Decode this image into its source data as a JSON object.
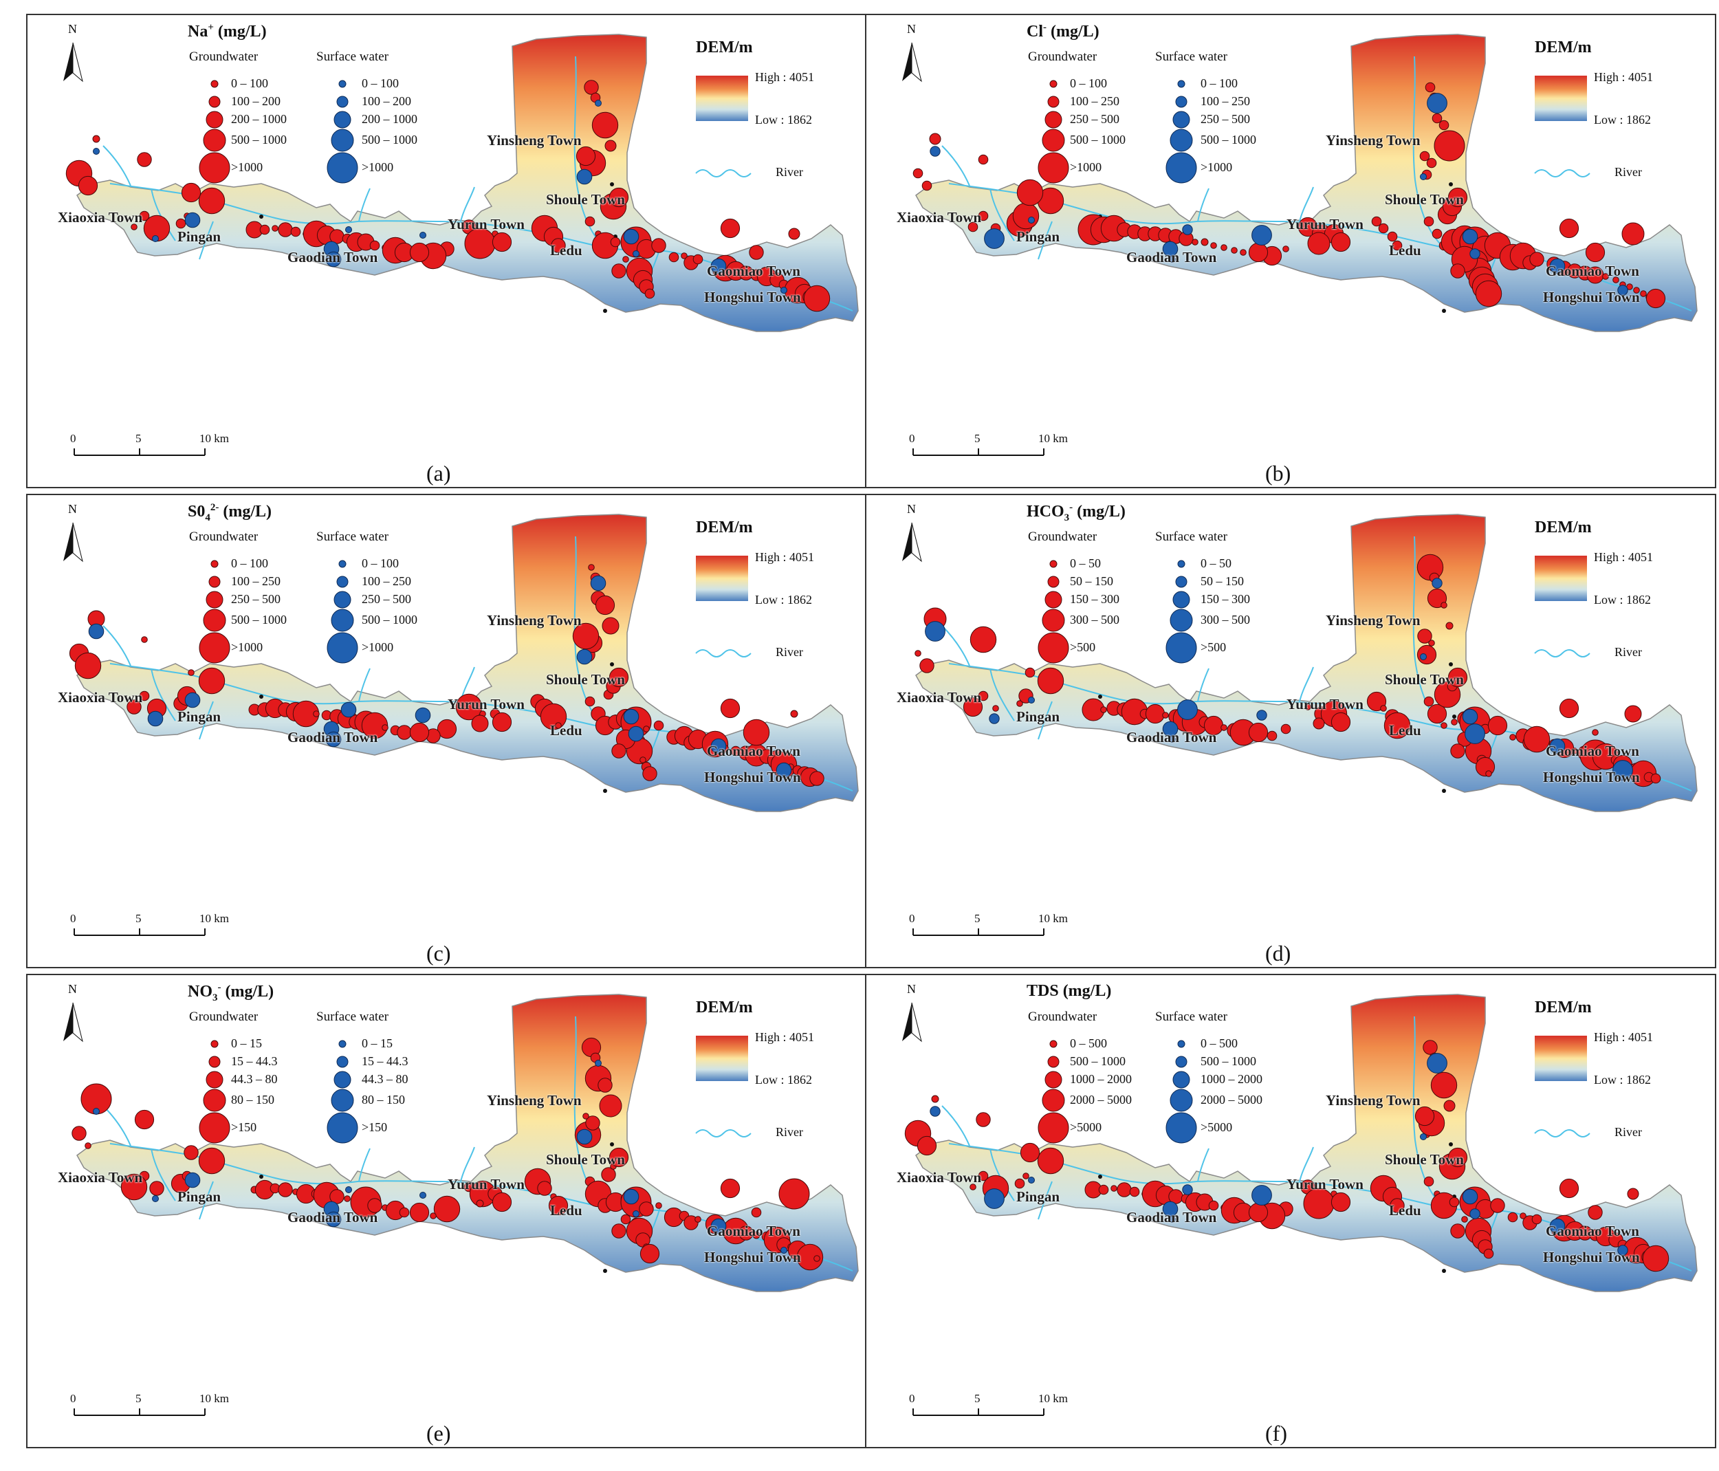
{
  "dem": {
    "title": "DEM/m",
    "high_label": "High : 4051",
    "low_label": "Low : 1862",
    "high_value": 4051,
    "low_value": 1862,
    "colors": [
      "#d73027",
      "#f08c4a",
      "#fce7a0",
      "#cfe3e7",
      "#4a7dbd"
    ]
  },
  "river_label": "River",
  "north_label": "N",
  "scale": {
    "ticks": [
      "0",
      "5",
      "10 km"
    ]
  },
  "legend_headers": {
    "groundwater": "Groundwater",
    "surface": "Surface water"
  },
  "colors": {
    "groundwater": "#e31a1c",
    "surface": "#2060b0",
    "river": "#4fc3e8"
  },
  "towns": [
    "Xiaoxia Town",
    "Pingan",
    "Gaodian Town",
    "Yurun Town",
    "Yinsheng Town",
    "Shoule Town",
    "Ledu",
    "Gaomiao Town",
    "Hongshui Town"
  ],
  "panels": [
    {
      "id": "a",
      "label": "(a)",
      "param_base": "Na",
      "param_sup": "+",
      "param_unit": " (mg/L)",
      "gw_classes": [
        "0 – 100",
        "100 – 200",
        "200 – 1000",
        "500 – 1000",
        ">1000"
      ],
      "sw_classes": [
        "0 – 100",
        "100 – 200",
        "200 – 1000",
        "500 – 1000",
        ">1000"
      ]
    },
    {
      "id": "b",
      "label": "(b)",
      "param_base": "Cl",
      "param_sup": "-",
      "param_unit": " (mg/L)",
      "gw_classes": [
        "0 – 100",
        "100 – 250",
        "250 – 500",
        "500 – 1000",
        ">1000"
      ],
      "sw_classes": [
        "0 – 100",
        "100 – 250",
        "250 – 500",
        "500 – 1000",
        ">1000"
      ]
    },
    {
      "id": "c",
      "label": "(c)",
      "param_base": "S0",
      "param_sub": "4",
      "param_sup": "2-",
      "param_unit": " (mg/L)",
      "gw_classes": [
        "0 – 100",
        "100 – 250",
        "250 – 500",
        "500 – 1000",
        ">1000"
      ],
      "sw_classes": [
        "0 – 100",
        "100 – 250",
        "250 – 500",
        "500 – 1000",
        ">1000"
      ]
    },
    {
      "id": "d",
      "label": "(d)",
      "param_base": "HCO",
      "param_sub": "3",
      "param_sup": "-",
      "param_unit": " (mg/L)",
      "gw_classes": [
        "0 – 50",
        "50 – 150",
        "150 – 300",
        "300 – 500",
        ">500"
      ],
      "sw_classes": [
        "0 – 50",
        "50 – 150",
        "150 – 300",
        "300 – 500",
        ">500"
      ]
    },
    {
      "id": "e",
      "label": "(e)",
      "param_base": "NO",
      "param_sub": "3",
      "param_sup": "-",
      "param_unit": " (mg/L)",
      "gw_classes": [
        "0 – 15",
        "15 – 44.3",
        "44.3 – 80",
        "80 – 150",
        ">150"
      ],
      "sw_classes": [
        "0 – 15",
        "15 – 44.3",
        "44.3 – 80",
        "80 – 150",
        ">150"
      ]
    },
    {
      "id": "f",
      "label": "(f)",
      "param_base": "TDS",
      "param_unit": " (mg/L)",
      "gw_classes": [
        "0 – 500",
        "500 – 1000",
        "1000 – 2000",
        "2000 – 5000",
        ">5000"
      ],
      "sw_classes": [
        "0 – 500",
        "500 – 1000",
        "1000 – 2000",
        "2000 – 5000",
        ">5000"
      ]
    }
  ]
}
